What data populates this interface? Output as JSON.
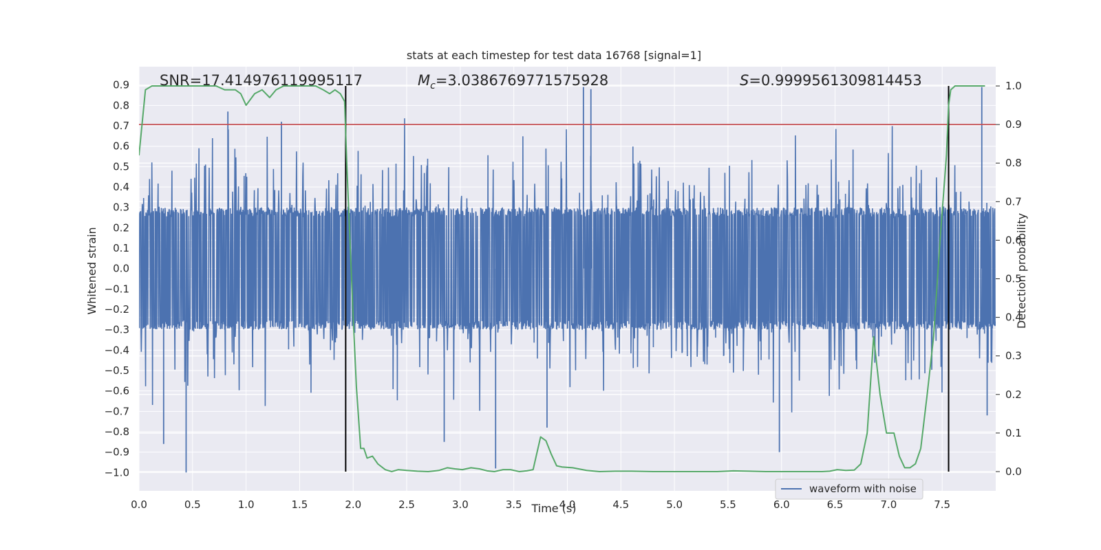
{
  "figure": {
    "title": "stats at each timestep for test data 16768 [signal=1]",
    "xlabel": "Time (s)",
    "ylabel_left": "Whitened strain",
    "ylabel_right": "Detection probability",
    "legend_label": "waveform with noise",
    "annotations": {
      "snr": "SNR=17.414976119995117",
      "mc_symbol": "M",
      "mc_sub": "c",
      "mc_value": "=3.0386769771575928",
      "s_symbol": "S",
      "s_value": "=0.9999561309814453"
    }
  },
  "colors": {
    "background": "#eaeaf2",
    "grid": "#ffffff",
    "waveform": "#4c72b0",
    "probability": "#55a868",
    "threshold": "#c44e52",
    "markers": "#000000"
  },
  "chart_data": {
    "type": "line",
    "title": "stats at each timestep for test data 16768 [signal=1]",
    "xlabel": "Time (s)",
    "ylabel": "Whitened strain",
    "ylabel_right": "Detection probability",
    "xlim": [
      0.0,
      8.0
    ],
    "ylim": [
      -1.09,
      0.99
    ],
    "ylim_right": [
      -0.05,
      1.05
    ],
    "x_ticks": [
      "0.0",
      "0.5",
      "1.0",
      "1.5",
      "2.0",
      "2.5",
      "3.0",
      "3.5",
      "4.0",
      "4.5",
      "5.0",
      "5.5",
      "6.0",
      "6.5",
      "7.0",
      "7.5"
    ],
    "y_ticks_left": [
      "0.9",
      "0.8",
      "0.7",
      "0.6",
      "0.5",
      "0.4",
      "0.3",
      "0.2",
      "0.1",
      "0.0",
      "−0.1",
      "−0.2",
      "−0.3",
      "−0.4",
      "−0.5",
      "−0.6",
      "−0.7",
      "−0.8",
      "−0.9",
      "−1.0"
    ],
    "y_ticks_right": [
      "1.0",
      "0.9",
      "0.8",
      "0.7",
      "0.6",
      "0.5",
      "0.4",
      "0.3",
      "0.2",
      "0.1",
      "0.0"
    ],
    "grid": true,
    "legend_position": "lower-right",
    "series": [
      {
        "name": "waveform with noise",
        "axis": "left",
        "kind": "dense-noise",
        "core_amplitude": 0.3,
        "sampled_peaks": [
          {
            "x": 0.23,
            "y": -0.86
          },
          {
            "x": 0.44,
            "y": -1.0
          },
          {
            "x": 0.83,
            "y": 0.77
          },
          {
            "x": 1.33,
            "y": 0.72
          },
          {
            "x": 2.85,
            "y": -0.85
          },
          {
            "x": 3.33,
            "y": -0.98
          },
          {
            "x": 3.81,
            "y": -0.78
          },
          {
            "x": 4.15,
            "y": 0.89
          },
          {
            "x": 4.22,
            "y": 0.88
          },
          {
            "x": 5.98,
            "y": -0.9
          },
          {
            "x": 7.87,
            "y": 0.89
          },
          {
            "x": 7.92,
            "y": -0.72
          }
        ]
      },
      {
        "axis": "right",
        "kind": "probability",
        "x": [
          0.0,
          0.06,
          0.12,
          0.18,
          0.25,
          0.35,
          0.45,
          0.55,
          0.65,
          0.72,
          0.8,
          0.9,
          0.95,
          1.0,
          1.08,
          1.15,
          1.22,
          1.28,
          1.35,
          1.45,
          1.55,
          1.65,
          1.72,
          1.78,
          1.83,
          1.88,
          1.92,
          1.94,
          1.97,
          2.0,
          2.03,
          2.07,
          2.1,
          2.13,
          2.18,
          2.23,
          2.3,
          2.36,
          2.42,
          2.5,
          2.6,
          2.7,
          2.8,
          2.88,
          2.95,
          3.02,
          3.1,
          3.18,
          3.25,
          3.32,
          3.4,
          3.47,
          3.55,
          3.62,
          3.68,
          3.75,
          3.8,
          3.85,
          3.9,
          3.95,
          4.05,
          4.18,
          4.3,
          4.45,
          4.6,
          4.8,
          5.0,
          5.2,
          5.4,
          5.55,
          5.7,
          5.85,
          6.0,
          6.2,
          6.38,
          6.45,
          6.52,
          6.6,
          6.68,
          6.74,
          6.8,
          6.86,
          6.88,
          6.92,
          6.98,
          7.05,
          7.1,
          7.15,
          7.2,
          7.25,
          7.3,
          7.36,
          7.42,
          7.48,
          7.54,
          7.56,
          7.58,
          7.62,
          7.66,
          7.72,
          7.8,
          7.9
        ],
        "y": [
          0.82,
          0.99,
          1.0,
          1.0,
          1.0,
          1.0,
          1.0,
          1.0,
          1.0,
          1.0,
          0.99,
          0.99,
          0.98,
          0.95,
          0.98,
          0.99,
          0.97,
          0.99,
          1.0,
          1.0,
          1.0,
          1.0,
          0.99,
          0.98,
          0.99,
          0.98,
          0.96,
          0.8,
          0.6,
          0.4,
          0.22,
          0.06,
          0.06,
          0.035,
          0.04,
          0.02,
          0.005,
          0.0,
          0.005,
          0.003,
          0.001,
          0.0,
          0.003,
          0.01,
          0.007,
          0.005,
          0.01,
          0.007,
          0.002,
          0.0,
          0.005,
          0.005,
          0.0,
          0.002,
          0.005,
          0.09,
          0.08,
          0.045,
          0.015,
          0.012,
          0.01,
          0.003,
          0.0,
          0.001,
          0.001,
          0.0,
          0.0,
          0.0,
          0.0,
          0.002,
          0.001,
          0.0,
          0.0,
          0.0,
          0.0,
          0.001,
          0.005,
          0.003,
          0.004,
          0.02,
          0.1,
          0.35,
          0.3,
          0.2,
          0.1,
          0.1,
          0.04,
          0.01,
          0.01,
          0.02,
          0.06,
          0.2,
          0.35,
          0.6,
          0.82,
          0.95,
          0.99,
          1.0,
          1.0,
          1.0,
          1.0,
          1.0
        ]
      }
    ],
    "threshold_line": {
      "axis": "right",
      "y": 0.9
    },
    "vertical_markers": [
      1.93,
      7.56
    ]
  }
}
